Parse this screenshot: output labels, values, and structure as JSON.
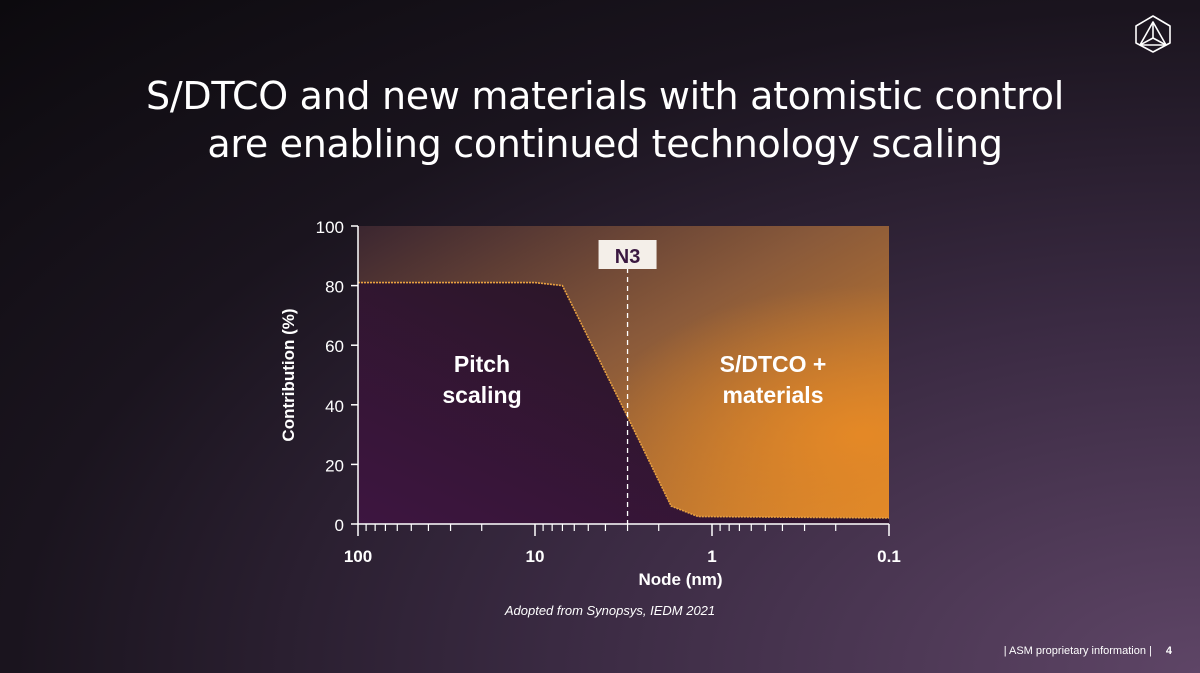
{
  "slide": {
    "title_line1": "S/DTCO and new materials with atomistic control",
    "title_line2": "are enabling continued technology scaling",
    "source": "Adopted from Synopsys, IEDM 2021",
    "footer_text": "| ASM proprietary information |",
    "page_number": "4",
    "logo_icon": "asm-triangle-logo-icon"
  },
  "chart_data": {
    "type": "area",
    "xlabel": "Node (nm)",
    "ylabel": "Contribution (%)",
    "x_scale": "log",
    "x_reversed": true,
    "xlim": [
      100,
      0.1
    ],
    "ylim": [
      0,
      100
    ],
    "x_ticks": [
      100,
      10,
      1,
      0.1
    ],
    "x_tick_labels": [
      "100",
      "10",
      "1",
      "0.1"
    ],
    "y_ticks": [
      0,
      20,
      40,
      60,
      80,
      100
    ],
    "y_tick_labels": [
      "0",
      "20",
      "40",
      "60",
      "80",
      "100"
    ],
    "series": [
      {
        "name": "Pitch scaling",
        "x": [
          100,
          10,
          7,
          3,
          1.7,
          1.2,
          0.1
        ],
        "y": [
          81,
          81,
          80,
          36,
          6,
          2.5,
          2
        ]
      }
    ],
    "upper_region_label": "S/DTCO +\nmaterials",
    "marker": {
      "label": "N3",
      "x": 3
    },
    "colors": {
      "pitch": "#3a1840",
      "sdtco": "#d9832a",
      "line": "#e8a040"
    }
  }
}
